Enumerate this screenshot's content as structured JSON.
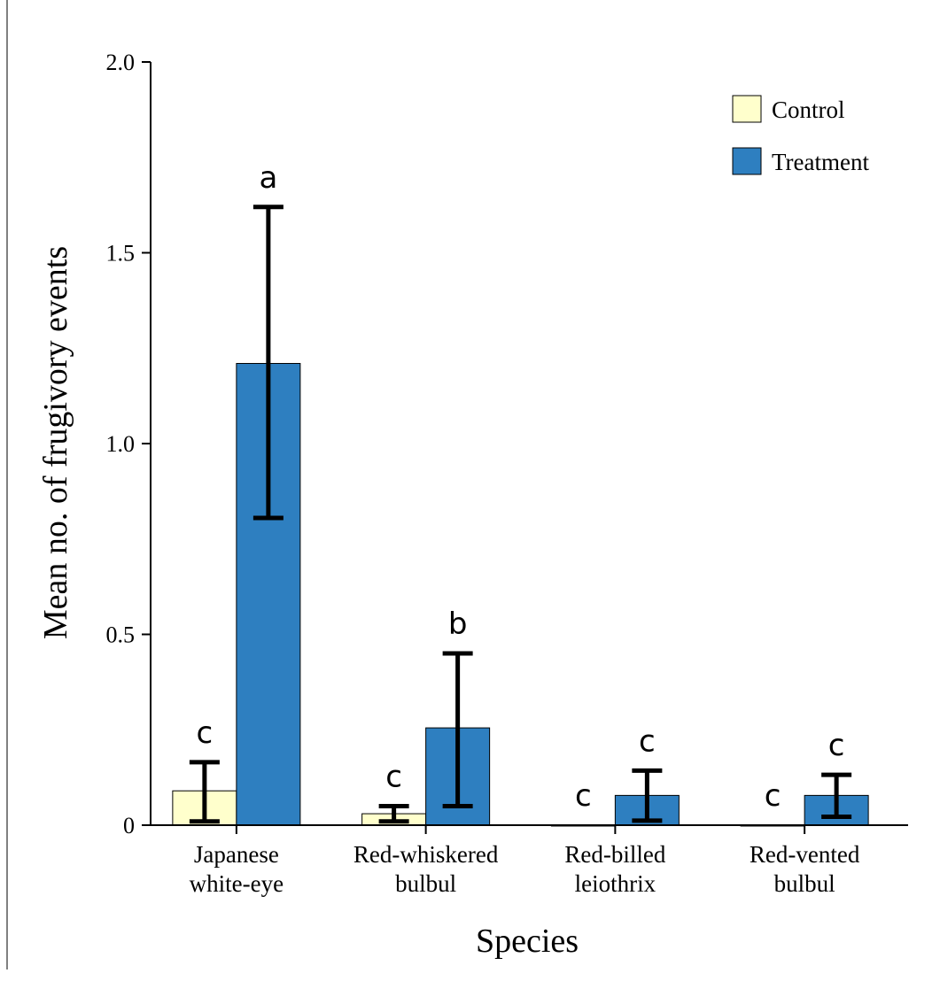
{
  "chart_data": {
    "type": "bar",
    "xlabel": "Species",
    "ylabel": "Mean no. of frugivory events",
    "ylim": [
      0,
      2.0
    ],
    "yticks": [
      {
        "value": 0,
        "label": "0"
      },
      {
        "value": 0.5,
        "label": "0.5"
      },
      {
        "value": 1.0,
        "label": "1.0"
      },
      {
        "value": 1.5,
        "label": "1.5"
      },
      {
        "value": 2.0,
        "label": "2.0"
      }
    ],
    "categories": [
      [
        "Japanese",
        "white-eye"
      ],
      [
        "Red-whiskered",
        "bulbul"
      ],
      [
        "Red-billed",
        "leiothrix"
      ],
      [
        "Red-vented",
        "bulbul"
      ]
    ],
    "legend_position": "top-right",
    "series": [
      {
        "name": "Control",
        "color": "#ffffcc",
        "values": [
          0.09,
          0.03,
          0,
          0
        ],
        "err_low": [
          0.01,
          0.01,
          0,
          0
        ],
        "err_high": [
          0.165,
          0.05,
          0,
          0
        ],
        "letters": [
          "c",
          "c",
          "c",
          "c"
        ]
      },
      {
        "name": "Treatment",
        "color": "#2e7fc0",
        "values": [
          1.21,
          0.255,
          0.078,
          0.078
        ],
        "err_low": [
          0.805,
          0.05,
          0.012,
          0.022
        ],
        "err_high": [
          1.62,
          0.45,
          0.143,
          0.132
        ],
        "letters": [
          "a",
          "b",
          "c",
          "c"
        ]
      }
    ]
  }
}
